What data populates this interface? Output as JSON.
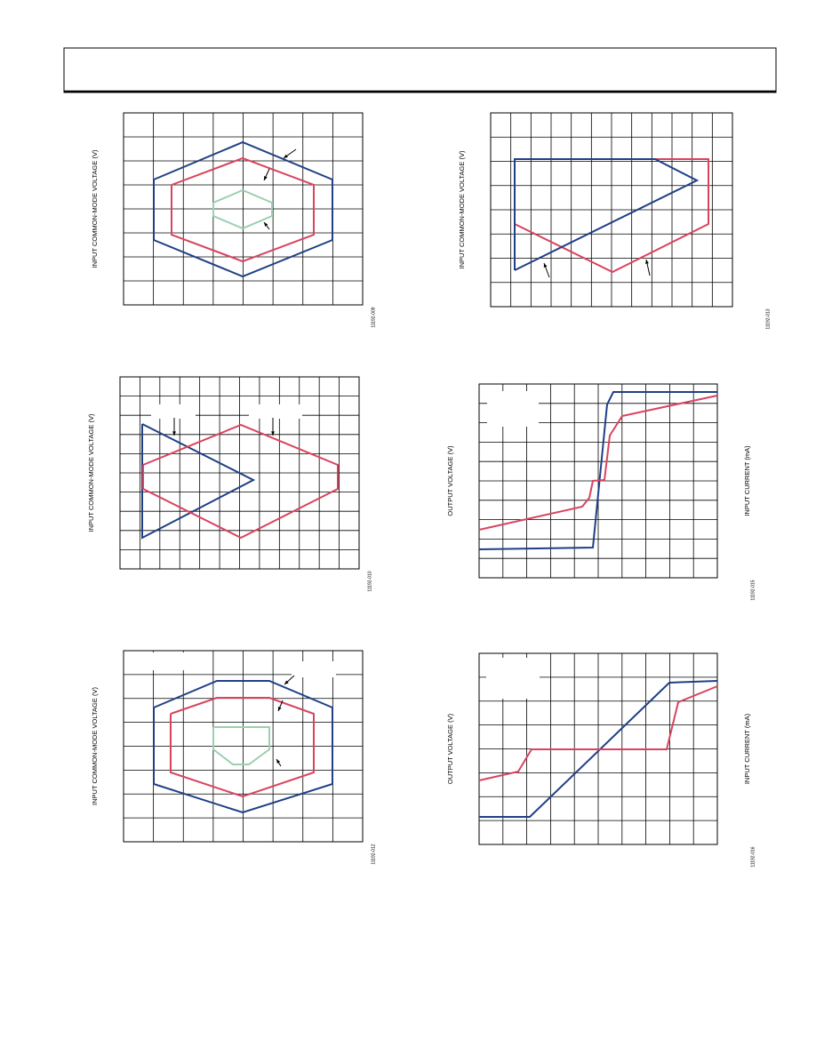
{
  "figures": [
    {
      "y_label": "INPUT COMMON-MODE VOLTAGE (V)",
      "figure_id": "11192-009"
    },
    {
      "y_label": "INPUT COMMON-MODE VOLTAGE (V)",
      "figure_id": "11192-013"
    },
    {
      "y_label": "INPUT COMMON-MODE VOLTAGE (V)",
      "figure_id": "11192-010"
    },
    {
      "y_label": "OUTPUT VOLTAGE (V)",
      "y2_label": "INPUT CURRENT (mA)",
      "figure_id": "11192-015"
    },
    {
      "y_label": "INPUT COMMON-MODE VOLTAGE (V)",
      "figure_id": "11192-012"
    },
    {
      "y_label": "OUTPUT VOLTAGE (V)",
      "y2_label": "INPUT CURRENT (mA)",
      "figure_id": "11192-016"
    }
  ]
}
